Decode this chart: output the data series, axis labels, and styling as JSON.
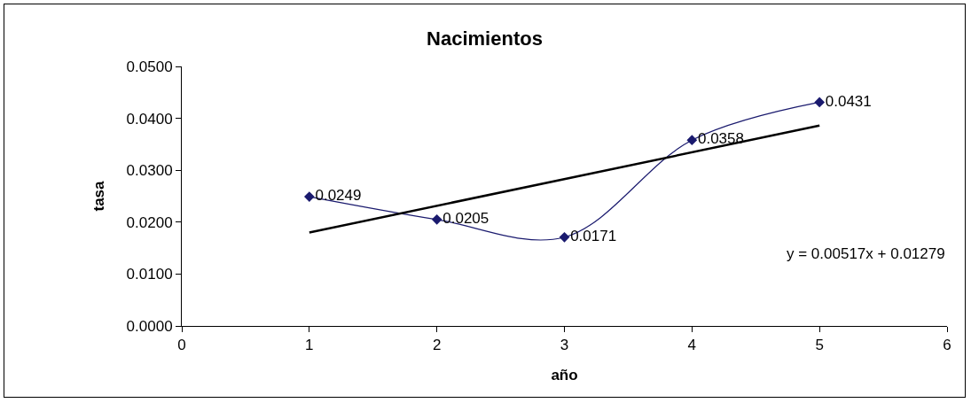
{
  "chart_data": {
    "type": "line",
    "title": "Nacimientos",
    "xlabel": "año",
    "ylabel": "tasa",
    "x": [
      1,
      2,
      3,
      4,
      5
    ],
    "series": [
      {
        "color": "#1a1a6e",
        "values": [
          0.0249,
          0.0205,
          0.0171,
          0.0358,
          0.0431
        ],
        "value_labels": [
          "0.0249",
          "0.0205",
          "0.0171",
          "0.0358",
          "0.0431"
        ],
        "marker": "diamond"
      },
      {
        "color": "#000000",
        "x": [
          1,
          5
        ],
        "values": [
          0.018,
          0.0386
        ],
        "marker": "none"
      }
    ],
    "annotations": [
      "y = 0.00517x + 0.01279"
    ],
    "xlim": [
      0,
      6
    ],
    "xticks": [
      0,
      1,
      2,
      3,
      4,
      5,
      6
    ],
    "ylim": [
      0,
      0.05
    ],
    "yticks": [
      {
        "value": 0,
        "label": "0.0000"
      },
      {
        "value": 0.01,
        "label": "0.0100"
      },
      {
        "value": 0.02,
        "label": "0.0200"
      },
      {
        "value": 0.03,
        "label": "0.0300"
      },
      {
        "value": 0.04,
        "label": "0.0400"
      },
      {
        "value": 0.05,
        "label": "0.0500"
      }
    ],
    "grid": false,
    "legend": false
  }
}
